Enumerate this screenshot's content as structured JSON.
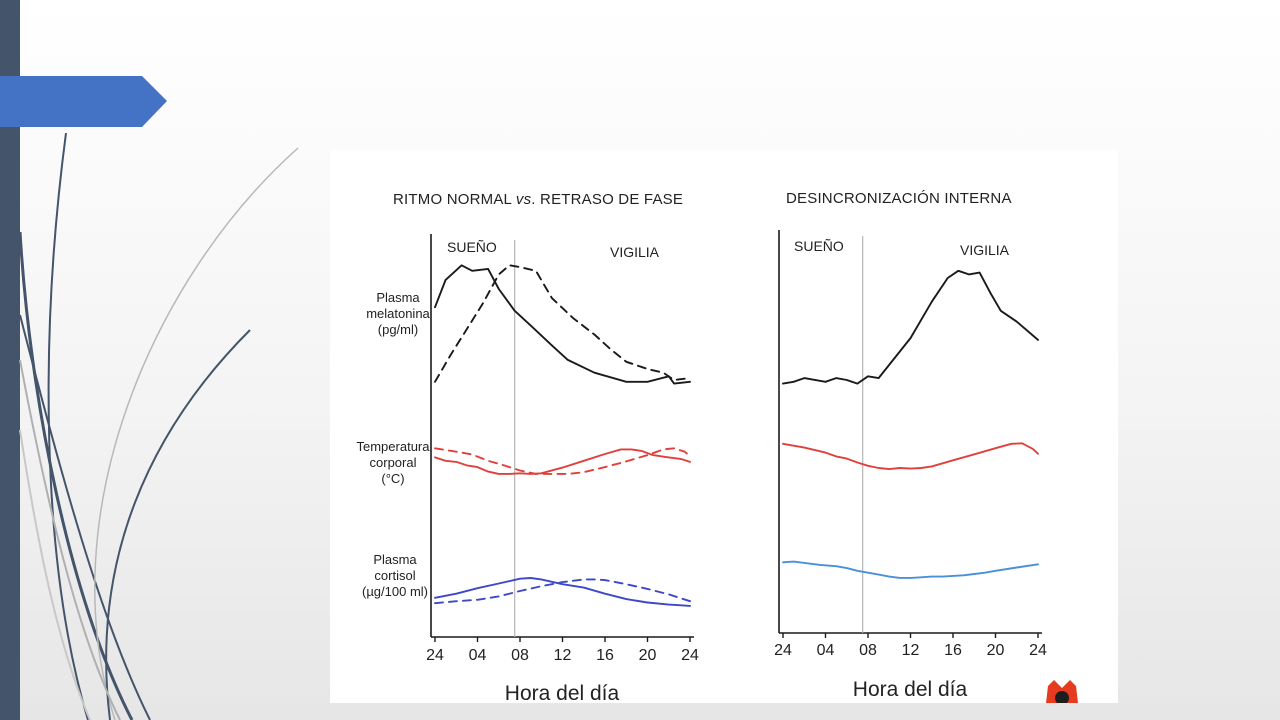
{
  "theme": {
    "accent": "#4472c4",
    "sidebar": "#44546a",
    "curve_lines": "#44546a",
    "curve_lines_light": "#b0b0b0"
  },
  "chart_data": [
    {
      "type": "line",
      "title_parts": [
        "RITMO NORMAL ",
        "vs",
        ". RETRASO DE FASE"
      ],
      "regions": [
        "SUEÑO",
        "VIGILIA"
      ],
      "xlabel": "Hora del día",
      "x_ticks": [
        "24",
        "04",
        "08",
        "12",
        "16",
        "20",
        "24"
      ],
      "x_hours": [
        0,
        4,
        8,
        12,
        16,
        20,
        24
      ],
      "xlim": [
        0,
        24
      ],
      "divider_hour": 7.5,
      "grid": false,
      "legend": "none",
      "y_labels": [
        {
          "lines": [
            "Plasma",
            "melatonina",
            "(pg/ml)"
          ]
        },
        {
          "lines": [
            "Temperatura",
            "corporal",
            "(°C)"
          ]
        },
        {
          "lines": [
            "Plasma",
            "cortisol",
            "(µg/100 ml)"
          ]
        }
      ],
      "series": [
        {
          "band": 0,
          "color": "#1a1a1a",
          "dashed": false,
          "x": [
            0,
            1,
            2.5,
            3.5,
            5,
            6,
            7.5,
            9,
            11,
            12.5,
            15,
            18,
            20,
            22,
            22.5,
            24
          ],
          "y": [
            0.62,
            0.77,
            0.85,
            0.82,
            0.83,
            0.72,
            0.6,
            0.52,
            0.41,
            0.33,
            0.26,
            0.21,
            0.21,
            0.24,
            0.2,
            0.21
          ]
        },
        {
          "band": 0,
          "color": "#1a1a1a",
          "dashed": true,
          "x": [
            0,
            1.5,
            3,
            4.5,
            6,
            7,
            8,
            9.5,
            11,
            13,
            15,
            16.5,
            18,
            20,
            21.5,
            22.5,
            24
          ],
          "y": [
            0.21,
            0.36,
            0.5,
            0.64,
            0.8,
            0.85,
            0.84,
            0.82,
            0.67,
            0.56,
            0.47,
            0.39,
            0.32,
            0.28,
            0.26,
            0.22,
            0.23
          ]
        },
        {
          "band": 1,
          "color": "#e0403c",
          "dashed": false,
          "x": [
            0,
            1,
            2,
            3,
            4,
            5,
            6,
            7,
            8,
            9,
            10,
            12,
            14,
            16,
            17.5,
            18.5,
            19.5,
            20.5,
            22,
            23.2,
            24
          ],
          "y": [
            0.66,
            0.6,
            0.58,
            0.52,
            0.49,
            0.41,
            0.37,
            0.37,
            0.38,
            0.37,
            0.38,
            0.48,
            0.6,
            0.72,
            0.8,
            0.8,
            0.77,
            0.7,
            0.66,
            0.63,
            0.58
          ]
        },
        {
          "band": 1,
          "color": "#e0403c",
          "dashed": true,
          "x": [
            0,
            2,
            3.5,
            5,
            6.5,
            8,
            9.5,
            11,
            12.5,
            14,
            16,
            18,
            20,
            21.5,
            22.5,
            23.5,
            24
          ],
          "y": [
            0.82,
            0.76,
            0.71,
            0.6,
            0.52,
            0.43,
            0.37,
            0.37,
            0.37,
            0.4,
            0.49,
            0.59,
            0.7,
            0.8,
            0.82,
            0.76,
            0.68
          ]
        },
        {
          "band": 2,
          "color": "#3d47c8",
          "dashed": false,
          "x": [
            0,
            2,
            4,
            6,
            8,
            9,
            10,
            12,
            14,
            16,
            18,
            20,
            22,
            23,
            24
          ],
          "y": [
            0.18,
            0.24,
            0.32,
            0.39,
            0.46,
            0.47,
            0.45,
            0.38,
            0.33,
            0.24,
            0.16,
            0.11,
            0.08,
            0.07,
            0.06
          ]
        },
        {
          "band": 2,
          "color": "#3d47c8",
          "dashed": true,
          "x": [
            0,
            2,
            4,
            6,
            8,
            10,
            12,
            14,
            15,
            16,
            18,
            20,
            22,
            24
          ],
          "y": [
            0.1,
            0.13,
            0.15,
            0.2,
            0.28,
            0.35,
            0.41,
            0.45,
            0.45,
            0.44,
            0.38,
            0.31,
            0.23,
            0.13
          ]
        }
      ]
    },
    {
      "type": "line",
      "title_parts": [
        "DESINCRONIZACIÓN INTERNA"
      ],
      "regions": [
        "SUEÑO",
        "VIGILIA"
      ],
      "xlabel": "Hora del día",
      "x_ticks": [
        "24",
        "04",
        "08",
        "12",
        "16",
        "20",
        "24"
      ],
      "x_hours": [
        0,
        4,
        8,
        12,
        16,
        20,
        24
      ],
      "xlim": [
        0,
        24
      ],
      "divider_hour": 7.5,
      "grid": false,
      "legend": "none",
      "y_labels": [],
      "series": [
        {
          "band": 0,
          "color": "#1a1a1a",
          "dashed": false,
          "x": [
            0,
            1,
            2,
            4,
            5,
            6,
            7,
            8,
            9,
            12,
            14,
            15.5,
            16.5,
            17.5,
            18.5,
            19.5,
            20.5,
            22,
            24
          ],
          "y": [
            0.2,
            0.21,
            0.23,
            0.21,
            0.23,
            0.22,
            0.2,
            0.24,
            0.23,
            0.45,
            0.65,
            0.78,
            0.82,
            0.8,
            0.81,
            0.7,
            0.6,
            0.54,
            0.44
          ]
        },
        {
          "band": 1,
          "color": "#e0403c",
          "dashed": false,
          "x": [
            0,
            2,
            4,
            5,
            6,
            7,
            8,
            9,
            10,
            11,
            12,
            13,
            14,
            16,
            18,
            20,
            21.5,
            22.5,
            23.5,
            24
          ],
          "y": [
            0.84,
            0.77,
            0.68,
            0.61,
            0.57,
            0.5,
            0.44,
            0.4,
            0.38,
            0.4,
            0.39,
            0.4,
            0.43,
            0.54,
            0.65,
            0.76,
            0.84,
            0.85,
            0.75,
            0.66
          ]
        },
        {
          "band": 2,
          "color": "#4a90d9",
          "dashed": false,
          "x": [
            0,
            1,
            2,
            3.5,
            5,
            6,
            7,
            8,
            9,
            10,
            11,
            12,
            13,
            14,
            15,
            16,
            17,
            18,
            19,
            20,
            22,
            24
          ],
          "y": [
            0.58,
            0.59,
            0.57,
            0.54,
            0.52,
            0.49,
            0.45,
            0.42,
            0.39,
            0.36,
            0.34,
            0.34,
            0.35,
            0.36,
            0.36,
            0.37,
            0.38,
            0.4,
            0.42,
            0.45,
            0.5,
            0.55
          ]
        }
      ]
    }
  ]
}
